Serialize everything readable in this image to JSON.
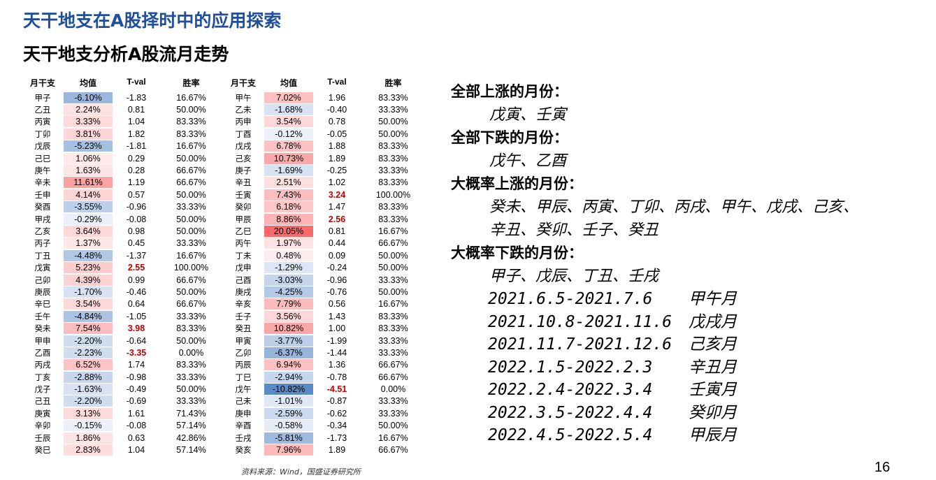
{
  "title": "天干地支在A股择时中的应用探索",
  "subtitle": "天干地支分析A股流月走势",
  "table": {
    "headers": [
      "月干支",
      "均值",
      "T-val",
      "胜率",
      "月干支",
      "均值",
      "T-val",
      "胜率"
    ],
    "rows": [
      [
        {
          "gz": "甲子",
          "mean": "-6.10%",
          "v": -6.1,
          "t": "-1.83",
          "win": "16.67%"
        },
        {
          "gz": "甲午",
          "mean": "7.02%",
          "v": 7.02,
          "t": "1.96",
          "win": "83.33%"
        }
      ],
      [
        {
          "gz": "乙丑",
          "mean": "2.24%",
          "v": 2.24,
          "t": "0.81",
          "win": "50.00%"
        },
        {
          "gz": "乙未",
          "mean": "-1.68%",
          "v": -1.68,
          "t": "-0.40",
          "win": "33.33%"
        }
      ],
      [
        {
          "gz": "丙寅",
          "mean": "3.33%",
          "v": 3.33,
          "t": "1.04",
          "win": "83.33%"
        },
        {
          "gz": "丙申",
          "mean": "3.54%",
          "v": 3.54,
          "t": "0.78",
          "win": "50.00%"
        }
      ],
      [
        {
          "gz": "丁卯",
          "mean": "3.81%",
          "v": 3.81,
          "t": "1.82",
          "win": "83.33%"
        },
        {
          "gz": "丁酉",
          "mean": "-0.12%",
          "v": -0.12,
          "t": "-0.05",
          "win": "50.00%"
        }
      ],
      [
        {
          "gz": "戊辰",
          "mean": "-5.23%",
          "v": -5.23,
          "t": "-1.81",
          "win": "16.67%"
        },
        {
          "gz": "戊戌",
          "mean": "6.78%",
          "v": 6.78,
          "t": "1.88",
          "win": "83.33%"
        }
      ],
      [
        {
          "gz": "己巳",
          "mean": "1.06%",
          "v": 1.06,
          "t": "0.29",
          "win": "50.00%"
        },
        {
          "gz": "己亥",
          "mean": "10.73%",
          "v": 10.73,
          "t": "1.89",
          "win": "83.33%"
        }
      ],
      [
        {
          "gz": "庚午",
          "mean": "1.63%",
          "v": 1.63,
          "t": "0.28",
          "win": "66.67%"
        },
        {
          "gz": "庚子",
          "mean": "-1.69%",
          "v": -1.69,
          "t": "-0.25",
          "win": "33.33%"
        }
      ],
      [
        {
          "gz": "辛未",
          "mean": "11.61%",
          "v": 11.61,
          "t": "1.19",
          "win": "66.67%"
        },
        {
          "gz": "辛丑",
          "mean": "2.51%",
          "v": 2.51,
          "t": "1.02",
          "win": "83.33%"
        }
      ],
      [
        {
          "gz": "壬申",
          "mean": "4.14%",
          "v": 4.14,
          "t": "0.57",
          "win": "50.00%"
        },
        {
          "gz": "壬寅",
          "mean": "7.43%",
          "v": 7.43,
          "t": "3.24",
          "sig": true,
          "win": "100.00%"
        }
      ],
      [
        {
          "gz": "癸酉",
          "mean": "-3.55%",
          "v": -3.55,
          "t": "-0.96",
          "win": "33.33%"
        },
        {
          "gz": "癸卯",
          "mean": "6.18%",
          "v": 6.18,
          "t": "1.47",
          "win": "83.33%"
        }
      ],
      [
        {
          "gz": "甲戌",
          "mean": "-0.29%",
          "v": -0.29,
          "t": "-0.08",
          "win": "50.00%"
        },
        {
          "gz": "甲辰",
          "mean": "8.86%",
          "v": 8.86,
          "t": "2.56",
          "sig": true,
          "win": "83.33%"
        }
      ],
      [
        {
          "gz": "乙亥",
          "mean": "3.64%",
          "v": 3.64,
          "t": "0.98",
          "win": "50.00%"
        },
        {
          "gz": "乙巳",
          "mean": "20.05%",
          "v": 20.05,
          "t": "0.81",
          "win": "16.67%"
        }
      ],
      [
        {
          "gz": "丙子",
          "mean": "1.37%",
          "v": 1.37,
          "t": "0.45",
          "win": "33.33%"
        },
        {
          "gz": "丙午",
          "mean": "1.97%",
          "v": 1.97,
          "t": "0.44",
          "win": "66.67%"
        }
      ],
      [
        {
          "gz": "丁丑",
          "mean": "-4.48%",
          "v": -4.48,
          "t": "-1.37",
          "win": "16.67%"
        },
        {
          "gz": "丁未",
          "mean": "0.48%",
          "v": 0.48,
          "t": "0.09",
          "win": "50.00%"
        }
      ],
      [
        {
          "gz": "戊寅",
          "mean": "5.23%",
          "v": 5.23,
          "t": "2.55",
          "sig": true,
          "win": "100.00%"
        },
        {
          "gz": "戊申",
          "mean": "-1.29%",
          "v": -1.29,
          "t": "-0.24",
          "win": "50.00%"
        }
      ],
      [
        {
          "gz": "己卯",
          "mean": "4.39%",
          "v": 4.39,
          "t": "0.99",
          "win": "66.67%"
        },
        {
          "gz": "己酉",
          "mean": "-3.03%",
          "v": -3.03,
          "t": "-0.96",
          "win": "33.33%"
        }
      ],
      [
        {
          "gz": "庚辰",
          "mean": "-1.70%",
          "v": -1.7,
          "t": "-0.46",
          "win": "50.00%"
        },
        {
          "gz": "庚戌",
          "mean": "-4.25%",
          "v": -4.25,
          "t": "-0.76",
          "win": "50.00%"
        }
      ],
      [
        {
          "gz": "辛巳",
          "mean": "3.54%",
          "v": 3.54,
          "t": "0.64",
          "win": "66.67%"
        },
        {
          "gz": "辛亥",
          "mean": "7.79%",
          "v": 7.79,
          "t": "0.56",
          "win": "16.67%"
        }
      ],
      [
        {
          "gz": "壬午",
          "mean": "-4.84%",
          "v": -4.84,
          "t": "-1.05",
          "win": "33.33%"
        },
        {
          "gz": "壬子",
          "mean": "3.56%",
          "v": 3.56,
          "t": "1.43",
          "win": "83.33%"
        }
      ],
      [
        {
          "gz": "癸未",
          "mean": "7.54%",
          "v": 7.54,
          "t": "3.98",
          "sig": true,
          "win": "83.33%"
        },
        {
          "gz": "癸丑",
          "mean": "10.82%",
          "v": 10.82,
          "t": "1.00",
          "win": "83.33%"
        }
      ],
      [
        {
          "gz": "甲申",
          "mean": "-2.20%",
          "v": -2.2,
          "t": "-0.64",
          "win": "50.00%"
        },
        {
          "gz": "甲寅",
          "mean": "-3.77%",
          "v": -3.77,
          "t": "-1.99",
          "win": "33.33%"
        }
      ],
      [
        {
          "gz": "乙酉",
          "mean": "-2.23%",
          "v": -2.23,
          "t": "-3.35",
          "sig": true,
          "win": "0.00%"
        },
        {
          "gz": "乙卯",
          "mean": "-6.37%",
          "v": -6.37,
          "t": "-1.44",
          "win": "33.33%"
        }
      ],
      [
        {
          "gz": "丙戌",
          "mean": "6.52%",
          "v": 6.52,
          "t": "1.74",
          "win": "83.33%"
        },
        {
          "gz": "丙辰",
          "mean": "6.94%",
          "v": 6.94,
          "t": "1.36",
          "win": "66.67%"
        }
      ],
      [
        {
          "gz": "丁亥",
          "mean": "-2.88%",
          "v": -2.88,
          "t": "-0.98",
          "win": "33.33%"
        },
        {
          "gz": "丁巳",
          "mean": "-2.94%",
          "v": -2.94,
          "t": "-0.78",
          "win": "66.67%"
        }
      ],
      [
        {
          "gz": "戊子",
          "mean": "-1.63%",
          "v": -1.63,
          "t": "-0.49",
          "win": "50.00%"
        },
        {
          "gz": "戊午",
          "mean": "-10.82%",
          "v": -10.82,
          "t": "-4.51",
          "sig": true,
          "win": "0.00%"
        }
      ],
      [
        {
          "gz": "己丑",
          "mean": "-2.20%",
          "v": -2.2,
          "t": "-0.69",
          "win": "33.33%"
        },
        {
          "gz": "己未",
          "mean": "-1.01%",
          "v": -1.01,
          "t": "-0.87",
          "win": "33.33%"
        }
      ],
      [
        {
          "gz": "庚寅",
          "mean": "3.13%",
          "v": 3.13,
          "t": "1.61",
          "win": "71.43%"
        },
        {
          "gz": "庚申",
          "mean": "-2.59%",
          "v": -2.59,
          "t": "-0.62",
          "win": "33.33%"
        }
      ],
      [
        {
          "gz": "辛卯",
          "mean": "-0.15%",
          "v": -0.15,
          "t": "-0.08",
          "win": "57.14%"
        },
        {
          "gz": "辛酉",
          "mean": "-0.58%",
          "v": -0.58,
          "t": "-0.34",
          "win": "50.00%"
        }
      ],
      [
        {
          "gz": "壬辰",
          "mean": "1.86%",
          "v": 1.86,
          "t": "0.63",
          "win": "42.86%"
        },
        {
          "gz": "壬戌",
          "mean": "-5.81%",
          "v": -5.81,
          "t": "-1.73",
          "win": "16.67%"
        }
      ],
      [
        {
          "gz": "癸巳",
          "mean": "2.83%",
          "v": 2.83,
          "t": "1.04",
          "win": "57.14%"
        },
        {
          "gz": "癸亥",
          "mean": "7.96%",
          "v": 7.96,
          "t": "1.89",
          "win": "66.67%"
        }
      ]
    ]
  },
  "source": "资料来源：Wind，国盛证券研究所",
  "summary": {
    "all_up_head": "全部上涨的月份：",
    "all_up_body": "戊寅、壬寅",
    "all_down_head": "全部下跌的月份：",
    "all_down_body": "戊午、乙酉",
    "likely_up_head": "大概率上涨的月份：",
    "likely_up_body_1": "癸未、甲辰、丙寅、丁卯、丙戌、甲午、戊戌、己亥、",
    "likely_up_body_2": "辛丑、癸卯、壬子、癸丑",
    "likely_down_head": "大概率下跌的月份：",
    "likely_down_body": "甲子、戊辰、丁丑、壬戌"
  },
  "periods": [
    {
      "range": "2021.6.5-2021.7.6",
      "label": "甲午月"
    },
    {
      "range": "2021.10.8-2021.11.6",
      "label": "戊戌月"
    },
    {
      "range": "2021.11.7-2021.12.6",
      "label": "己亥月"
    },
    {
      "range": "2022.1.5-2022.2.3",
      "label": "辛丑月"
    },
    {
      "range": "2022.2.4-2022.3.4",
      "label": "壬寅月"
    },
    {
      "range": "2022.3.5-2022.4.4",
      "label": "癸卯月"
    },
    {
      "range": "2022.4.5-2022.5.4",
      "label": "甲辰月"
    }
  ],
  "page_number": "16",
  "colors": {
    "title": "#1f4e9c",
    "positive": "#f8696b",
    "negative": "#5a8ac6",
    "significant_t": "#c00000"
  }
}
